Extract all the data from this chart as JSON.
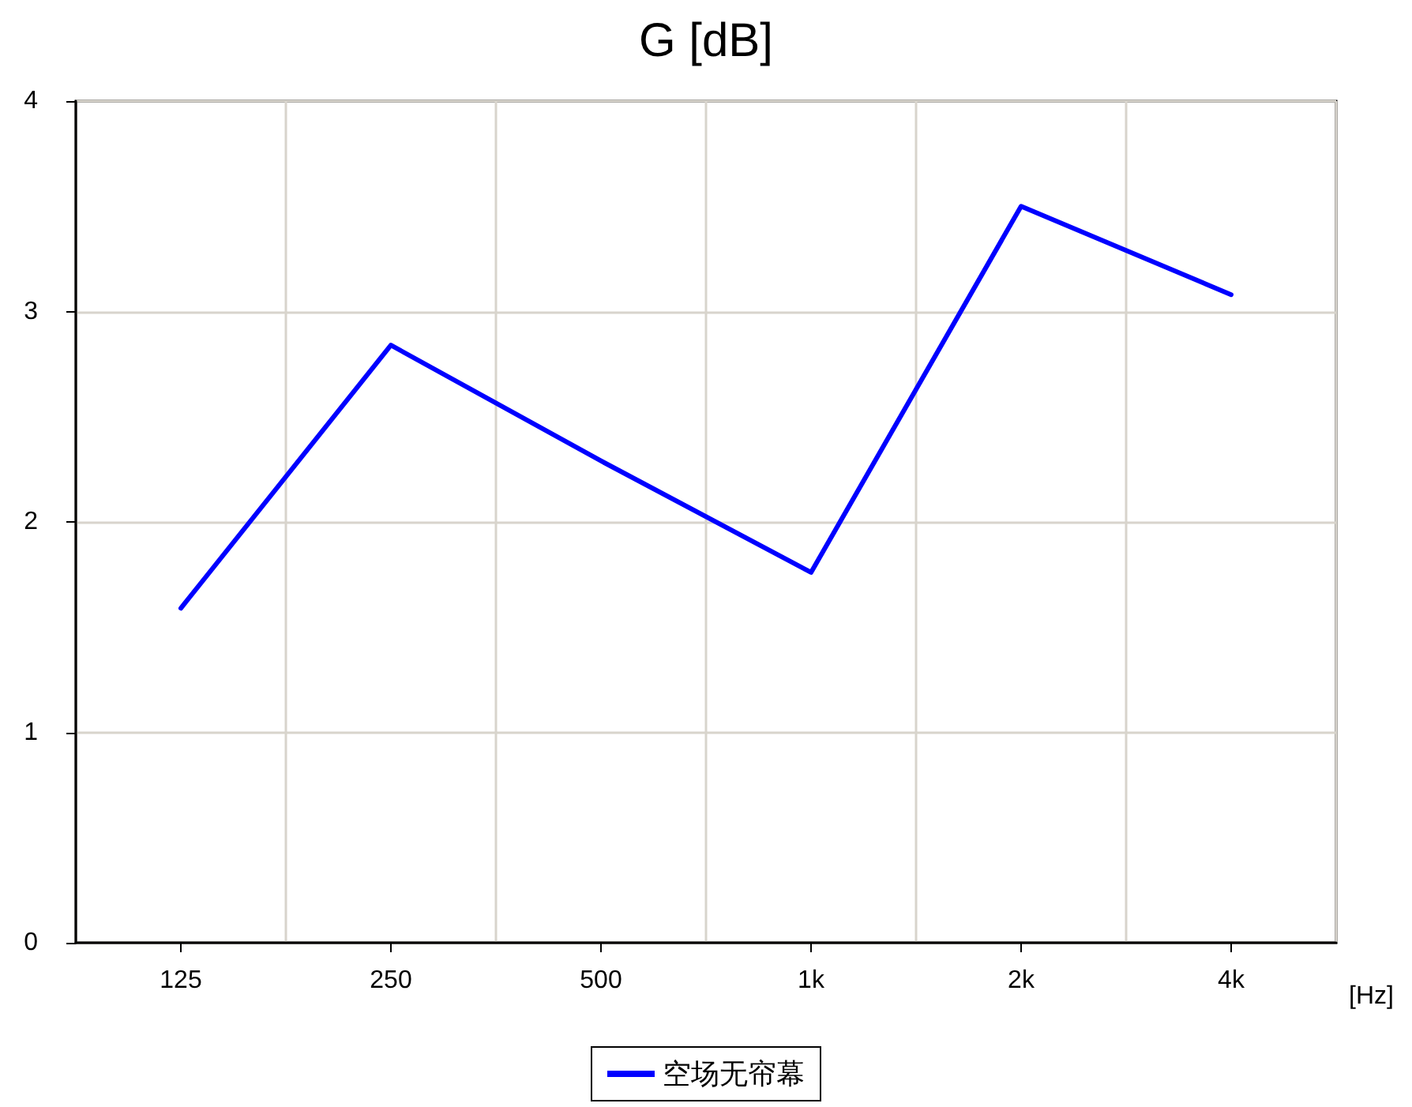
{
  "chart_data": {
    "type": "line",
    "title": "G [dB]",
    "xlabel": "[Hz]",
    "categories": [
      "125",
      "250",
      "500",
      "1k",
      "2k",
      "4k"
    ],
    "series": [
      {
        "name": "空场无帘幕",
        "color": "#0000ff",
        "values": [
          1.59,
          2.84,
          2.29,
          1.76,
          3.5,
          3.08
        ]
      }
    ],
    "ylim": [
      0,
      4
    ],
    "yticks": [
      0,
      1,
      2,
      3,
      4
    ],
    "grid": true,
    "legend": "bottom",
    "marker": "none",
    "line_style": "solid"
  }
}
